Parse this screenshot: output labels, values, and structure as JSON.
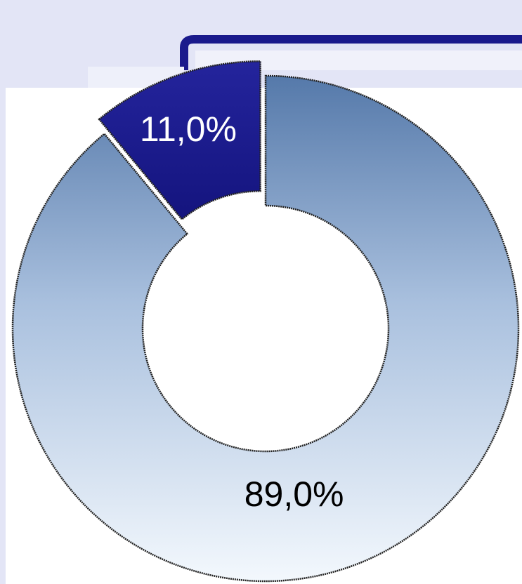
{
  "chart_data": {
    "type": "donut",
    "values": [
      89.0,
      11.0
    ],
    "value_labels": [
      "89,0%",
      "11,0%"
    ],
    "colors": [
      "#6a8cbc",
      "#1c1c94"
    ],
    "label_colors": [
      "#000000",
      "#ffffff"
    ]
  }
}
